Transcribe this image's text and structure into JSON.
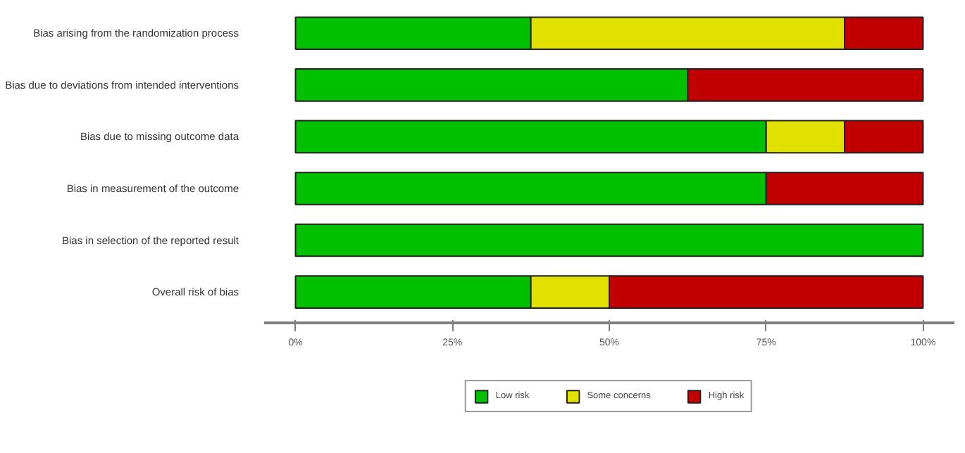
{
  "chart_data": {
    "type": "bar",
    "orientation": "horizontal",
    "stacked": true,
    "categories": [
      "Bias arising from the randomization process",
      "Bias due to deviations from intended interventions",
      "Bias due to missing outcome data",
      "Bias in measurement of the outcome",
      "Bias in selection of the reported result",
      "Overall risk of bias"
    ],
    "series": [
      {
        "name": "Low risk",
        "color": "#00c000",
        "values": [
          37.5,
          62.5,
          75,
          75,
          100,
          37.5
        ]
      },
      {
        "name": "Some concerns",
        "color": "#e1e100",
        "values": [
          50,
          0,
          12.5,
          0,
          0,
          12.5
        ]
      },
      {
        "name": "High risk",
        "color": "#c00000",
        "values": [
          12.5,
          37.5,
          12.5,
          25,
          0,
          50
        ]
      }
    ],
    "xlim": [
      -5,
      105
    ],
    "xticks": [
      {
        "value": 0,
        "label": "0%"
      },
      {
        "value": 25,
        "label": "25%"
      },
      {
        "value": 50,
        "label": "50%"
      },
      {
        "value": 75,
        "label": "75%"
      },
      {
        "value": 100,
        "label": "100%"
      }
    ],
    "grid": false,
    "legend": "bottom"
  }
}
